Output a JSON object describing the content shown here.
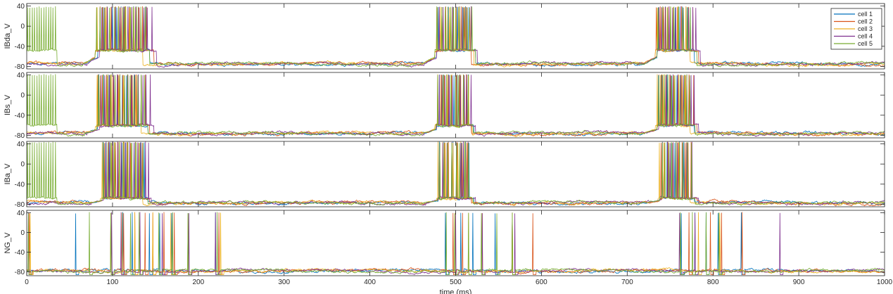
{
  "chart_data": {
    "type": "line",
    "xlabel": "time (ms)",
    "xlim": [
      0,
      1000
    ],
    "x_ticks": [
      0,
      100,
      200,
      300,
      400,
      500,
      600,
      700,
      800,
      900,
      1000
    ],
    "x_tick_labels": [
      "0",
      "100",
      "200",
      "300",
      "400",
      "500",
      "600",
      "700",
      "800",
      "900",
      "1000"
    ],
    "y_ticks": [
      -80,
      -40,
      0,
      40
    ],
    "y_tick_labels": [
      "-80",
      "-40",
      "0",
      "40"
    ],
    "legend": {
      "position": "top-right",
      "entries": [
        "cell 1",
        "cell 2",
        "cell 3",
        "cell 4",
        "cell 5"
      ]
    },
    "series_colors": [
      "#0072BD",
      "#D95319",
      "#EDB120",
      "#7E2F8E",
      "#77AC30"
    ],
    "panels": [
      {
        "ylabel": "IBda_V",
        "ylim": [
          -85,
          45
        ],
        "baseline_mV": -75,
        "plateau_mV": -48,
        "spike_peak_mV": 38,
        "bursts_ms": [
          [
            [
              83,
              140
            ],
            [
              80,
              145
            ],
            [
              80,
              132
            ],
            [
              85,
              148
            ],
            [
              80,
              140
            ]
          ],
          [
            [
              478,
              520
            ],
            [
              476,
              515
            ],
            [
              476,
              518
            ],
            [
              478,
              522
            ],
            [
              476,
              520
            ]
          ],
          [
            [
              735,
              775
            ],
            [
              733,
              780
            ],
            [
              733,
              770
            ],
            [
              735,
              782
            ],
            [
              735,
              778
            ]
          ]
        ],
        "initial_green_burst_ms": [
          0,
          35
        ]
      },
      {
        "ylabel": "IBs_V",
        "ylim": [
          -85,
          45
        ],
        "baseline_mV": -76,
        "plateau_mV": -60,
        "spike_peak_mV": 40,
        "bursts_ms": [
          [
            [
              83,
              138
            ],
            [
              82,
              140
            ],
            [
              80,
              130
            ],
            [
              85,
              145
            ],
            [
              82,
              138
            ]
          ],
          [
            [
              478,
              518
            ],
            [
              477,
              515
            ],
            [
              476,
              516
            ],
            [
              478,
              520
            ],
            [
              477,
              517
            ]
          ],
          [
            [
              735,
              775
            ],
            [
              735,
              778
            ],
            [
              733,
              770
            ],
            [
              737,
              780
            ],
            [
              735,
              776
            ]
          ]
        ],
        "initial_green_burst_ms": [
          0,
          35
        ]
      },
      {
        "ylabel": "IBa_V",
        "ylim": [
          -85,
          45
        ],
        "baseline_mV": -77,
        "plateau_mV": -68,
        "spike_peak_mV": 43,
        "bursts_ms": [
          [
            [
              88,
              138
            ],
            [
              88,
              140
            ],
            [
              86,
              132
            ],
            [
              90,
              142
            ],
            [
              88,
              138
            ]
          ],
          [
            [
              480,
              518
            ],
            [
              479,
              515
            ],
            [
              478,
              516
            ],
            [
              480,
              520
            ],
            [
              479,
              517
            ]
          ],
          [
            [
              738,
              775
            ],
            [
              738,
              778
            ],
            [
              736,
              770
            ],
            [
              740,
              780
            ],
            [
              738,
              776
            ]
          ]
        ],
        "initial_green_burst_ms": [
          0,
          35
        ]
      },
      {
        "ylabel": "NG_V",
        "ylim": [
          -88,
          45
        ],
        "baseline_mV": -78,
        "spike_peak_mV": 40,
        "spikes_ms": [
          [
            57,
            98,
            112,
            123,
            143,
            155,
            169,
            188,
            220,
            488,
            506,
            520,
            546,
            566,
            763,
            779,
            792,
            806,
            833
          ],
          [
            3,
            98,
            113,
            126,
            138,
            147,
            160,
            172,
            224,
            497,
            508,
            531,
            566,
            590,
            772,
            797,
            810,
            834
          ],
          [
            4,
            98,
            111,
            126,
            147,
            168,
            188,
            226,
            499,
            515,
            566,
            783,
            808
          ],
          [
            2,
            99,
            110,
            132,
            158,
            189,
            220,
            500,
            531,
            569,
            761,
            779,
            878
          ],
          [
            2,
            73,
            98,
            121,
            131,
            154,
            170,
            188,
            222,
            489,
            499,
            515,
            530,
            548,
            566,
            762,
            776,
            792,
            807
          ]
        ]
      }
    ]
  }
}
